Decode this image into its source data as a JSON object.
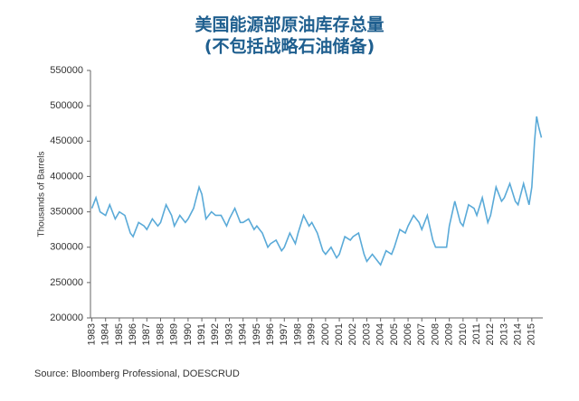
{
  "chart_data": {
    "type": "line",
    "title": "美国能源部原油库存总量",
    "subtitle": "(不包括战略石油储备)",
    "y_label": "Thousands of Barrels",
    "source": "Source: Bloomberg Professional, DOESCRUD",
    "series": [
      {
        "name": "DOESCRUD",
        "color": "#5aaad8",
        "x": [
          1983.0,
          1983.3,
          1983.6,
          1984.0,
          1984.3,
          1984.7,
          1985.0,
          1985.4,
          1985.8,
          1986.0,
          1986.4,
          1986.8,
          1987.0,
          1987.4,
          1987.8,
          1988.0,
          1988.4,
          1988.8,
          1989.0,
          1989.4,
          1989.8,
          1990.0,
          1990.4,
          1990.8,
          1991.0,
          1991.3,
          1991.7,
          1992.0,
          1992.4,
          1992.8,
          1993.0,
          1993.4,
          1993.8,
          1994.0,
          1994.4,
          1994.8,
          1995.0,
          1995.4,
          1995.8,
          1996.0,
          1996.4,
          1996.8,
          1997.0,
          1997.4,
          1997.8,
          1998.0,
          1998.4,
          1998.8,
          1999.0,
          1999.4,
          1999.8,
          2000.0,
          2000.4,
          2000.8,
          2001.0,
          2001.4,
          2001.8,
          2002.0,
          2002.4,
          2002.8,
          2003.0,
          2003.4,
          2003.8,
          2004.0,
          2004.4,
          2004.8,
          2005.0,
          2005.4,
          2005.8,
          2006.0,
          2006.4,
          2006.8,
          2007.0,
          2007.4,
          2007.8,
          2008.0,
          2008.4,
          2008.8,
          2009.0,
          2009.4,
          2009.8,
          2010.0,
          2010.4,
          2010.8,
          2011.0,
          2011.4,
          2011.8,
          2012.0,
          2012.4,
          2012.8,
          2013.0,
          2013.4,
          2013.8,
          2014.0,
          2014.4,
          2014.8,
          2015.0,
          2015.2,
          2015.35,
          2015.5,
          2015.7
        ],
        "values": [
          355000,
          370000,
          350000,
          345000,
          360000,
          340000,
          350000,
          345000,
          320000,
          315000,
          335000,
          330000,
          325000,
          340000,
          330000,
          335000,
          360000,
          345000,
          330000,
          345000,
          335000,
          340000,
          355000,
          385000,
          375000,
          340000,
          350000,
          345000,
          345000,
          330000,
          340000,
          355000,
          335000,
          335000,
          340000,
          325000,
          330000,
          320000,
          300000,
          305000,
          310000,
          295000,
          300000,
          320000,
          305000,
          320000,
          345000,
          330000,
          335000,
          320000,
          295000,
          290000,
          300000,
          285000,
          290000,
          315000,
          310000,
          315000,
          320000,
          290000,
          280000,
          290000,
          280000,
          275000,
          295000,
          290000,
          300000,
          325000,
          320000,
          330000,
          345000,
          335000,
          325000,
          345000,
          310000,
          300000,
          300000,
          300000,
          330000,
          365000,
          335000,
          330000,
          360000,
          355000,
          345000,
          370000,
          335000,
          345000,
          385000,
          365000,
          370000,
          390000,
          365000,
          360000,
          390000,
          360000,
          385000,
          450000,
          485000,
          470000,
          455000
        ]
      }
    ],
    "xlim": [
      1982.9,
      2015.8
    ],
    "xticks": [
      1983,
      1984,
      1985,
      1986,
      1987,
      1988,
      1989,
      1990,
      1991,
      1992,
      1993,
      1994,
      1995,
      1996,
      1997,
      1998,
      1999,
      2000,
      2001,
      2002,
      2003,
      2004,
      2005,
      2006,
      2007,
      2008,
      2009,
      2010,
      2011,
      2012,
      2013,
      2014,
      2015
    ],
    "ylim": [
      200000,
      550000
    ],
    "yticks": [
      200000,
      250000,
      300000,
      350000,
      400000,
      450000,
      500000,
      550000
    ]
  }
}
